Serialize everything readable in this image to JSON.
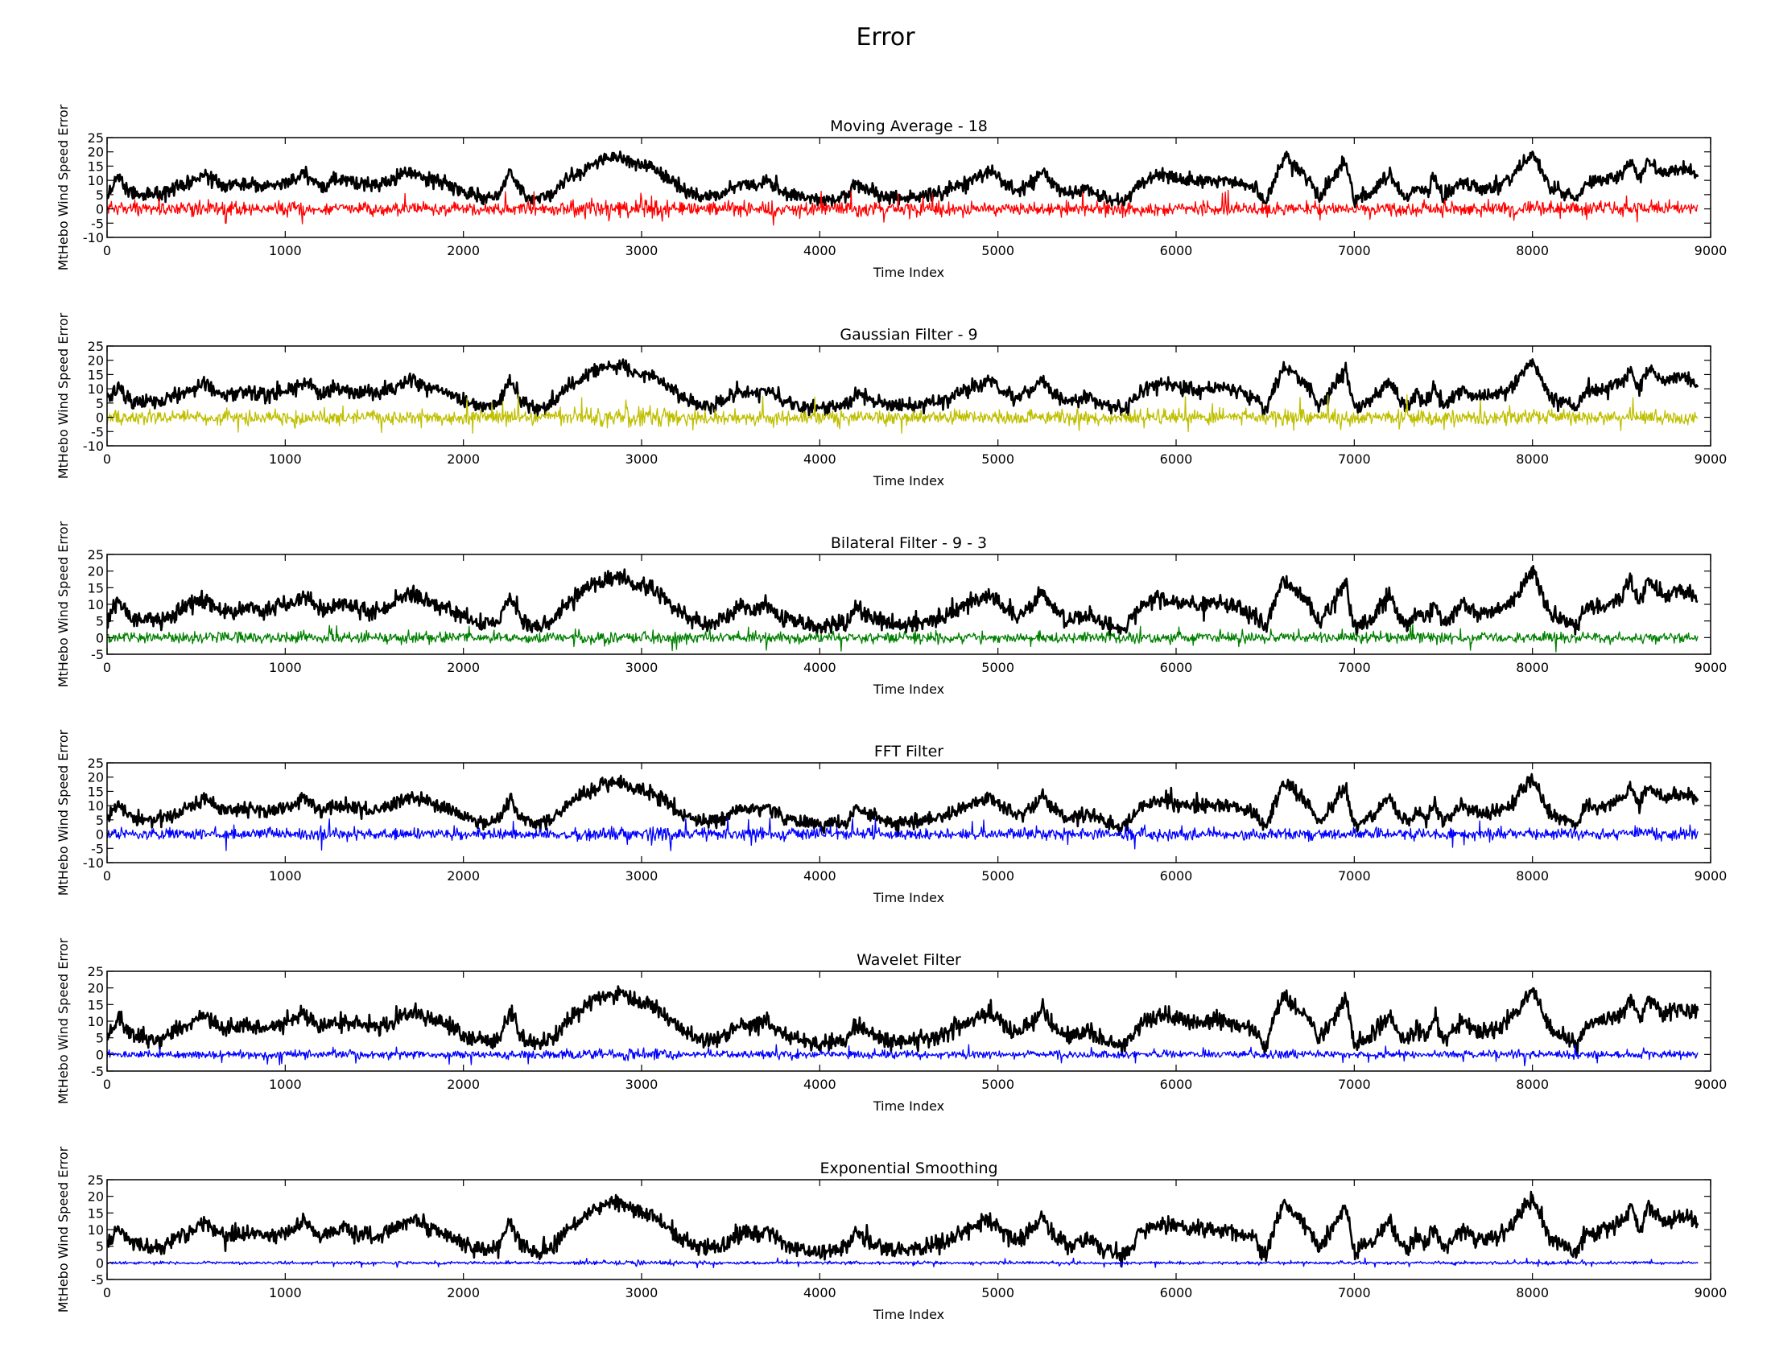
{
  "figure": {
    "title": "Error"
  },
  "chart_data": [
    {
      "type": "line",
      "title": "Moving Average - 18",
      "xlabel": "Time Index",
      "ylabel": "MtHebo Wind Speed Error",
      "xlim": [
        0,
        9000
      ],
      "ylim": [
        -10,
        25
      ],
      "xticks": [
        0,
        1000,
        2000,
        3000,
        4000,
        5000,
        6000,
        7000,
        8000,
        9000
      ],
      "yticks": [
        -10,
        -5,
        0,
        5,
        10,
        15,
        20,
        25
      ],
      "grid": false,
      "series": [
        {
          "color": "#000000",
          "role": "signal",
          "x_range": [
            0,
            8930
          ],
          "amplitude": 2.0
        },
        {
          "color": "#ff0000",
          "role": "error",
          "x_range": [
            0,
            8930
          ],
          "amplitude": 2.6,
          "min": -6,
          "max": 7
        }
      ]
    },
    {
      "type": "line",
      "title": "Gaussian Filter - 9",
      "xlabel": "Time Index",
      "ylabel": "MtHebo Wind Speed Error",
      "xlim": [
        0,
        9000
      ],
      "ylim": [
        -10,
        25
      ],
      "xticks": [
        0,
        1000,
        2000,
        3000,
        4000,
        5000,
        6000,
        7000,
        8000,
        9000
      ],
      "yticks": [
        -10,
        -5,
        0,
        5,
        10,
        15,
        20,
        25
      ],
      "grid": false,
      "series": [
        {
          "color": "#000000",
          "role": "signal",
          "x_range": [
            0,
            8930
          ],
          "amplitude": 2.0
        },
        {
          "color": "#bfbf00",
          "role": "error",
          "x_range": [
            0,
            8930
          ],
          "amplitude": 2.8,
          "min": -6,
          "max": 8
        }
      ]
    },
    {
      "type": "line",
      "title": "Bilateral Filter - 9 - 3",
      "xlabel": "Time Index",
      "ylabel": "MtHebo Wind Speed Error",
      "xlim": [
        0,
        9000
      ],
      "ylim": [
        -5,
        25
      ],
      "xticks": [
        0,
        1000,
        2000,
        3000,
        4000,
        5000,
        6000,
        7000,
        8000,
        9000
      ],
      "yticks": [
        -5,
        0,
        5,
        10,
        15,
        20,
        25
      ],
      "grid": false,
      "series": [
        {
          "color": "#000000",
          "role": "signal",
          "x_range": [
            0,
            8930
          ],
          "amplitude": 2.0
        },
        {
          "color": "#008000",
          "role": "error",
          "x_range": [
            0,
            8930
          ],
          "amplitude": 1.8,
          "min": -4.5,
          "max": 4
        }
      ]
    },
    {
      "type": "line",
      "title": "FFT Filter",
      "xlabel": "Time Index",
      "ylabel": "MtHebo Wind Speed Error",
      "xlim": [
        0,
        9000
      ],
      "ylim": [
        -10,
        25
      ],
      "xticks": [
        0,
        1000,
        2000,
        3000,
        4000,
        5000,
        6000,
        7000,
        8000,
        9000
      ],
      "yticks": [
        -10,
        -5,
        0,
        5,
        10,
        15,
        20,
        25
      ],
      "grid": false,
      "series": [
        {
          "color": "#000000",
          "role": "signal",
          "x_range": [
            0,
            8930
          ],
          "amplitude": 2.0
        },
        {
          "color": "#0000ff",
          "role": "error",
          "x_range": [
            0,
            8930
          ],
          "amplitude": 2.2,
          "min": -6,
          "max": 6
        }
      ]
    },
    {
      "type": "line",
      "title": "Wavelet Filter",
      "xlabel": "Time Index",
      "ylabel": "MtHebo Wind Speed Error",
      "xlim": [
        0,
        9000
      ],
      "ylim": [
        -5,
        25
      ],
      "xticks": [
        0,
        1000,
        2000,
        3000,
        4000,
        5000,
        6000,
        7000,
        8000,
        9000
      ],
      "yticks": [
        -5,
        0,
        5,
        10,
        15,
        20,
        25
      ],
      "grid": false,
      "series": [
        {
          "color": "#000000",
          "role": "signal",
          "x_range": [
            0,
            8930
          ],
          "amplitude": 2.0
        },
        {
          "color": "#0000ff",
          "role": "error",
          "x_range": [
            0,
            8930
          ],
          "amplitude": 1.3,
          "min": -3.5,
          "max": 3
        }
      ]
    },
    {
      "type": "line",
      "title": "Exponential Smoothing",
      "xlabel": "Time Index",
      "ylabel": "MtHebo Wind Speed Error",
      "xlim": [
        0,
        9000
      ],
      "ylim": [
        -5,
        25
      ],
      "xticks": [
        0,
        1000,
        2000,
        3000,
        4000,
        5000,
        6000,
        7000,
        8000,
        9000
      ],
      "yticks": [
        -5,
        0,
        5,
        10,
        15,
        20,
        25
      ],
      "grid": false,
      "series": [
        {
          "color": "#000000",
          "role": "signal",
          "x_range": [
            0,
            8930
          ],
          "amplitude": 2.0
        },
        {
          "color": "#0000ff",
          "role": "error",
          "x_range": [
            0,
            8930
          ],
          "amplitude": 0.5,
          "min": -1.5,
          "max": 1.5
        }
      ]
    }
  ],
  "signal_profile": {
    "x": [
      0,
      60,
      150,
      300,
      450,
      550,
      650,
      800,
      900,
      1050,
      1100,
      1200,
      1300,
      1400,
      1500,
      1600,
      1700,
      1800,
      1900,
      2000,
      2100,
      2200,
      2260,
      2320,
      2400,
      2500,
      2600,
      2700,
      2800,
      2900,
      2950,
      3050,
      3150,
      3250,
      3350,
      3450,
      3550,
      3650,
      3700,
      3800,
      3900,
      4000,
      4100,
      4150,
      4200,
      4300,
      4400,
      4500,
      4600,
      4700,
      4800,
      4950,
      5000,
      5100,
      5200,
      5250,
      5300,
      5400,
      5500,
      5600,
      5700,
      5800,
      5900,
      6000,
      6100,
      6200,
      6300,
      6400,
      6450,
      6500,
      6600,
      6700,
      6750,
      6800,
      6850,
      6900,
      6950,
      7000,
      7100,
      7200,
      7250,
      7300,
      7350,
      7400,
      7450,
      7500,
      7600,
      7700,
      7800,
      7850,
      7900,
      8000,
      8100,
      8200,
      8250,
      8300,
      8400,
      8500,
      8550,
      8600,
      8650,
      8700,
      8750,
      8800,
      8900,
      8930
    ],
    "y": [
      5,
      11,
      5,
      5,
      9,
      12,
      8,
      9,
      8,
      10,
      13,
      8,
      10,
      9,
      8,
      10,
      13,
      11,
      9,
      6,
      4,
      5,
      13,
      6,
      3,
      5,
      11,
      15,
      18,
      18,
      16,
      15,
      11,
      6,
      4,
      5,
      9,
      8,
      10,
      6,
      4,
      3,
      4,
      4,
      9,
      6,
      4,
      4,
      5,
      6,
      9,
      13,
      11,
      6,
      10,
      14,
      9,
      5,
      7,
      4,
      2,
      9,
      12,
      11,
      10,
      10,
      10,
      8,
      7,
      2,
      18,
      13,
      10,
      4,
      8,
      12,
      17,
      3,
      6,
      13,
      6,
      4,
      8,
      5,
      11,
      4,
      10,
      7,
      8,
      10,
      12,
      20,
      7,
      5,
      3,
      9,
      10,
      12,
      17,
      10,
      17,
      14,
      12,
      14,
      13,
      11
    ]
  }
}
